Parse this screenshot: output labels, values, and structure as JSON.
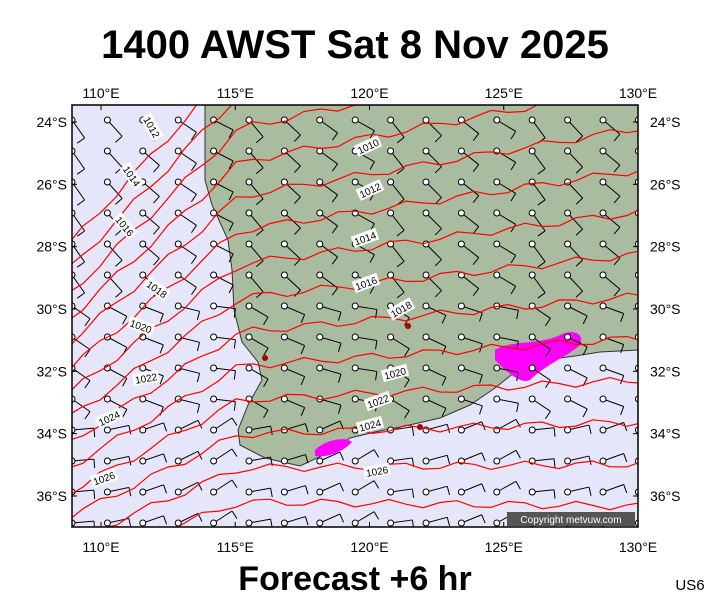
{
  "header": {
    "title": "1400 AWST Sat 8 Nov 2025"
  },
  "footer": {
    "caption": "Forecast +6 hr",
    "region": "US6"
  },
  "map": {
    "lon_ticks": [
      {
        "value": 110,
        "label": "110°E"
      },
      {
        "value": 115,
        "label": "115°E"
      },
      {
        "value": 120,
        "label": "120°E"
      },
      {
        "value": 125,
        "label": "125°E"
      },
      {
        "value": 130,
        "label": "130°E"
      }
    ],
    "lat_ticks": [
      {
        "value": -24,
        "label": "24°S"
      },
      {
        "value": -26,
        "label": "26°S"
      },
      {
        "value": -28,
        "label": "28°S"
      },
      {
        "value": -30,
        "label": "30°S"
      },
      {
        "value": -32,
        "label": "32°S"
      },
      {
        "value": -34,
        "label": "34°S"
      },
      {
        "value": -36,
        "label": "36°S"
      }
    ],
    "isobar_labels": [
      "1012",
      "1014",
      "1016",
      "1018",
      "1020",
      "1022",
      "1024",
      "1026",
      "1010",
      "1012",
      "1014",
      "1016",
      "1018",
      "1020",
      "1022",
      "1024",
      "1026"
    ],
    "copyright": "Copyright metvuw.com"
  }
}
